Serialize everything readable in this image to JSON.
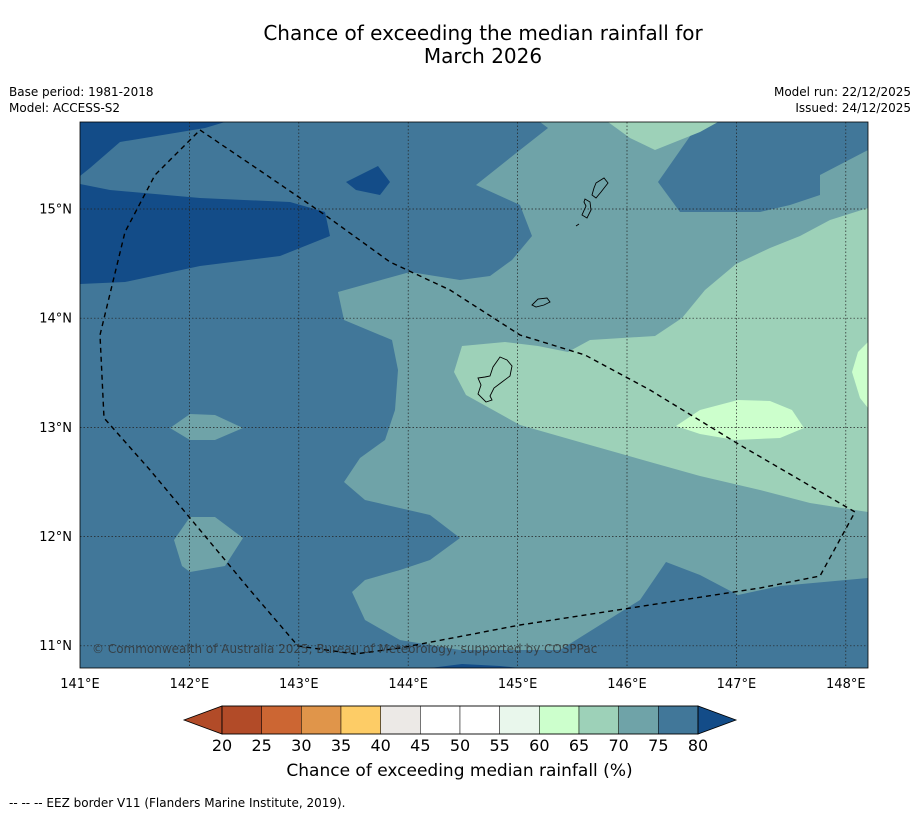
{
  "title_line1": "Chance of exceeding the median rainfall for",
  "title_line2": "March 2026",
  "base_period": "Base period: 1981-2018",
  "model": "Model: ACCESS-S2",
  "model_run": "Model run: 22/12/2025",
  "issued": "Issued: 24/12/2025",
  "copyright": "© Commonwealth of Australia 2025, Bureau of Meteorology, supported by COSPPac",
  "lon_ticks": [
    "141°E",
    "142°E",
    "143°E",
    "144°E",
    "145°E",
    "146°E",
    "147°E",
    "148°E"
  ],
  "lat_ticks": [
    "15°N",
    "14°N",
    "13°N",
    "12°N",
    "11°N"
  ],
  "colorbar": {
    "ticks": [
      "20",
      "25",
      "30",
      "35",
      "40",
      "45",
      "50",
      "55",
      "60",
      "65",
      "70",
      "75",
      "80"
    ],
    "colors": [
      "#b24b28",
      "#cc6633",
      "#e0954a",
      "#fdcc66",
      "#ece9e6",
      "#ffffff",
      "#ffffff",
      "#e9f7ec",
      "#ccffcc",
      "#9dd1b8",
      "#6fa3a8",
      "#417799"
    ],
    "under_color": "#b24b28",
    "over_color": "#134c88",
    "label": "Chance of exceeding median rainfall (%)"
  },
  "legend_note": "-- -- -- EEZ border V11 (Flanders Marine Institute, 2019)."
}
